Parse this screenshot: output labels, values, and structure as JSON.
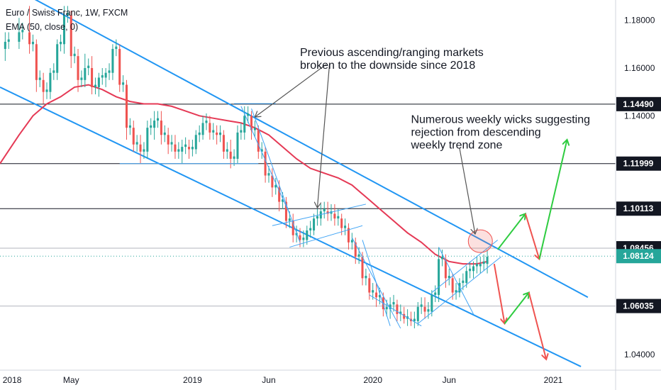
{
  "chart_data": {
    "type": "candlestick",
    "title": "Euro / Swiss Franc, 1W, FXCM",
    "indicator": "EMA (50, close, 0)",
    "ylim": [
      1.0335,
      1.1885
    ],
    "y_ticks": [
      1.04,
      1.06,
      1.08,
      1.1,
      1.12,
      1.14,
      1.16,
      1.18
    ],
    "y_tick_labels": [
      "1.04000",
      "1.06000",
      "1.08000",
      "1.10000",
      "1.12000",
      "1.14000",
      "1.16000",
      "1.18000"
    ],
    "x_ticks": [
      {
        "label": "2018",
        "week": 0
      },
      {
        "label": "May",
        "week": 17
      },
      {
        "label": "2019",
        "week": 52
      },
      {
        "label": "Jun",
        "week": 74
      },
      {
        "label": "2020",
        "week": 104
      },
      {
        "label": "Jun",
        "week": 126
      },
      {
        "label": "2021",
        "week": 156
      }
    ],
    "x_range_weeks": [
      -3.5,
      174
    ],
    "price_ohlc_points": [
      [
        -2,
        1.168,
        1.175,
        1.163,
        1.171
      ],
      [
        2,
        1.171,
        1.181,
        1.168,
        1.175
      ],
      [
        5,
        1.175,
        1.186,
        1.166,
        1.17
      ],
      [
        7,
        1.17,
        1.172,
        1.15,
        1.155
      ],
      [
        9,
        1.155,
        1.158,
        1.145,
        1.15
      ],
      [
        11,
        1.15,
        1.16,
        1.147,
        1.158
      ],
      [
        13,
        1.158,
        1.172,
        1.155,
        1.17
      ],
      [
        15,
        1.17,
        1.186,
        1.166,
        1.182
      ],
      [
        17,
        1.182,
        1.184,
        1.16,
        1.165
      ],
      [
        19,
        1.165,
        1.168,
        1.15,
        1.155
      ],
      [
        21,
        1.155,
        1.166,
        1.152,
        1.16
      ],
      [
        23,
        1.16,
        1.165,
        1.149,
        1.152
      ],
      [
        25,
        1.152,
        1.158,
        1.148,
        1.156
      ],
      [
        27,
        1.156,
        1.16,
        1.152,
        1.158
      ],
      [
        29,
        1.158,
        1.17,
        1.155,
        1.168
      ],
      [
        31,
        1.168,
        1.17,
        1.15,
        1.153
      ],
      [
        33,
        1.153,
        1.155,
        1.13,
        1.135
      ],
      [
        35,
        1.135,
        1.138,
        1.125,
        1.128
      ],
      [
        37,
        1.128,
        1.132,
        1.12,
        1.125
      ],
      [
        39,
        1.125,
        1.138,
        1.122,
        1.135
      ],
      [
        41,
        1.135,
        1.142,
        1.13,
        1.138
      ],
      [
        43,
        1.138,
        1.142,
        1.128,
        1.132
      ],
      [
        45,
        1.132,
        1.135,
        1.124,
        1.128
      ],
      [
        47,
        1.128,
        1.132,
        1.122,
        1.125
      ],
      [
        49,
        1.125,
        1.13,
        1.12,
        1.127
      ],
      [
        51,
        1.127,
        1.13,
        1.122,
        1.126
      ],
      [
        53,
        1.126,
        1.134,
        1.124,
        1.132
      ],
      [
        55,
        1.132,
        1.14,
        1.13,
        1.137
      ],
      [
        57,
        1.137,
        1.14,
        1.13,
        1.133
      ],
      [
        59,
        1.133,
        1.136,
        1.128,
        1.132
      ],
      [
        61,
        1.132,
        1.134,
        1.122,
        1.125
      ],
      [
        63,
        1.125,
        1.13,
        1.118,
        1.122
      ],
      [
        65,
        1.122,
        1.136,
        1.12,
        1.133
      ],
      [
        67,
        1.133,
        1.144,
        1.13,
        1.14
      ],
      [
        69,
        1.14,
        1.142,
        1.13,
        1.134
      ],
      [
        71,
        1.134,
        1.136,
        1.122,
        1.125
      ],
      [
        73,
        1.125,
        1.127,
        1.112,
        1.115
      ],
      [
        75,
        1.115,
        1.118,
        1.106,
        1.11
      ],
      [
        77,
        1.11,
        1.113,
        1.1,
        1.104
      ],
      [
        79,
        1.104,
        1.106,
        1.093,
        1.096
      ],
      [
        81,
        1.096,
        1.099,
        1.087,
        1.09
      ],
      [
        83,
        1.09,
        1.093,
        1.085,
        1.088
      ],
      [
        85,
        1.088,
        1.094,
        1.086,
        1.092
      ],
      [
        87,
        1.092,
        1.099,
        1.09,
        1.097
      ],
      [
        89,
        1.097,
        1.103,
        1.094,
        1.1
      ],
      [
        91,
        1.1,
        1.104,
        1.096,
        1.099
      ],
      [
        93,
        1.099,
        1.103,
        1.094,
        1.097
      ],
      [
        95,
        1.097,
        1.099,
        1.09,
        1.093
      ],
      [
        97,
        1.093,
        1.095,
        1.084,
        1.087
      ],
      [
        99,
        1.087,
        1.089,
        1.078,
        1.081
      ],
      [
        101,
        1.081,
        1.083,
        1.069,
        1.072
      ],
      [
        103,
        1.072,
        1.074,
        1.063,
        1.066
      ],
      [
        105,
        1.066,
        1.07,
        1.06,
        1.064
      ],
      [
        107,
        1.064,
        1.066,
        1.056,
        1.059
      ],
      [
        109,
        1.059,
        1.064,
        1.055,
        1.061
      ],
      [
        111,
        1.061,
        1.063,
        1.054,
        1.057
      ],
      [
        113,
        1.057,
        1.06,
        1.053,
        1.055
      ],
      [
        115,
        1.055,
        1.058,
        1.052,
        1.054
      ],
      [
        117,
        1.054,
        1.062,
        1.052,
        1.06
      ],
      [
        119,
        1.06,
        1.064,
        1.055,
        1.058
      ],
      [
        121,
        1.058,
        1.067,
        1.056,
        1.065
      ],
      [
        123,
        1.065,
        1.085,
        1.062,
        1.08
      ],
      [
        125,
        1.08,
        1.082,
        1.068,
        1.072
      ],
      [
        127,
        1.072,
        1.074,
        1.063,
        1.066
      ],
      [
        129,
        1.066,
        1.072,
        1.064,
        1.07
      ],
      [
        131,
        1.07,
        1.077,
        1.068,
        1.075
      ],
      [
        133,
        1.075,
        1.079,
        1.072,
        1.077
      ],
      [
        135,
        1.077,
        1.081,
        1.074,
        1.078
      ],
      [
        137,
        1.078,
        1.084,
        1.074,
        1.081
      ]
    ],
    "ema_points": [
      [
        -3.5,
        1.12
      ],
      [
        2,
        1.132
      ],
      [
        6,
        1.14
      ],
      [
        10,
        1.145
      ],
      [
        14,
        1.148
      ],
      [
        18,
        1.152
      ],
      [
        22,
        1.153
      ],
      [
        26,
        1.151
      ],
      [
        30,
        1.148
      ],
      [
        34,
        1.146
      ],
      [
        38,
        1.145
      ],
      [
        42,
        1.145
      ],
      [
        46,
        1.144
      ],
      [
        50,
        1.142
      ],
      [
        54,
        1.14
      ],
      [
        58,
        1.139
      ],
      [
        62,
        1.138
      ],
      [
        66,
        1.137
      ],
      [
        70,
        1.135
      ],
      [
        74,
        1.132
      ],
      [
        78,
        1.127
      ],
      [
        82,
        1.122
      ],
      [
        86,
        1.118
      ],
      [
        90,
        1.116
      ],
      [
        94,
        1.114
      ],
      [
        98,
        1.111
      ],
      [
        102,
        1.106
      ],
      [
        106,
        1.101
      ],
      [
        110,
        1.096
      ],
      [
        114,
        1.091
      ],
      [
        118,
        1.087
      ],
      [
        122,
        1.082
      ],
      [
        126,
        1.079
      ],
      [
        130,
        1.078
      ],
      [
        134,
        1.078
      ],
      [
        137,
        1.079
      ]
    ],
    "horizontal_levels": [
      {
        "label": "1.14490",
        "value": 1.1449,
        "style": "dark"
      },
      {
        "label": "1.11999",
        "value": 1.11999,
        "style": "dark"
      },
      {
        "label": "1.10113",
        "value": 1.10113,
        "style": "dark"
      },
      {
        "label": "1.08456",
        "value": 1.08456,
        "style": "gray"
      },
      {
        "label": "1.06035",
        "value": 1.06035,
        "style": "gray"
      }
    ],
    "last_price": {
      "label": "1.08124",
      "value": 1.08124
    },
    "channel_lines": [
      {
        "from": [
          5,
          1.19
        ],
        "to": [
          166,
          1.064
        ]
      },
      {
        "from": [
          -3.5,
          1.152
        ],
        "to": [
          164,
          1.035
        ]
      }
    ],
    "annotations": [
      {
        "lines": [
          "Previous ascending/ranging markets",
          "broken to the downside since 2018"
        ],
        "anchor": [
          83,
          1.165
        ]
      },
      {
        "lines": [
          "Numerous weekly wicks suggesting",
          "rejection from descending",
          "weekly trend zone"
        ],
        "anchor": [
          115,
          1.137
        ]
      }
    ],
    "arrows": [
      {
        "color": "green",
        "from": [
          140,
          1.084
        ],
        "to": [
          148,
          1.099
        ]
      },
      {
        "color": "red",
        "from": [
          148,
          1.099
        ],
        "to": [
          152,
          1.08
        ]
      },
      {
        "color": "green",
        "from": [
          152,
          1.08
        ],
        "to": [
          160,
          1.13
        ]
      },
      {
        "color": "red",
        "from": [
          139,
          1.078
        ],
        "to": [
          142,
          1.053
        ]
      },
      {
        "color": "green",
        "from": [
          142,
          1.053
        ],
        "to": [
          149,
          1.066
        ]
      },
      {
        "color": "red",
        "from": [
          149,
          1.066
        ],
        "to": [
          154,
          1.038
        ]
      }
    ],
    "grid": false,
    "colors": {
      "up": "#26a69a",
      "down": "#ef5350",
      "ema": "#e53955",
      "channel": "#2196f3",
      "badge_dark": "#131722",
      "badge_last": "#26a69a"
    }
  }
}
